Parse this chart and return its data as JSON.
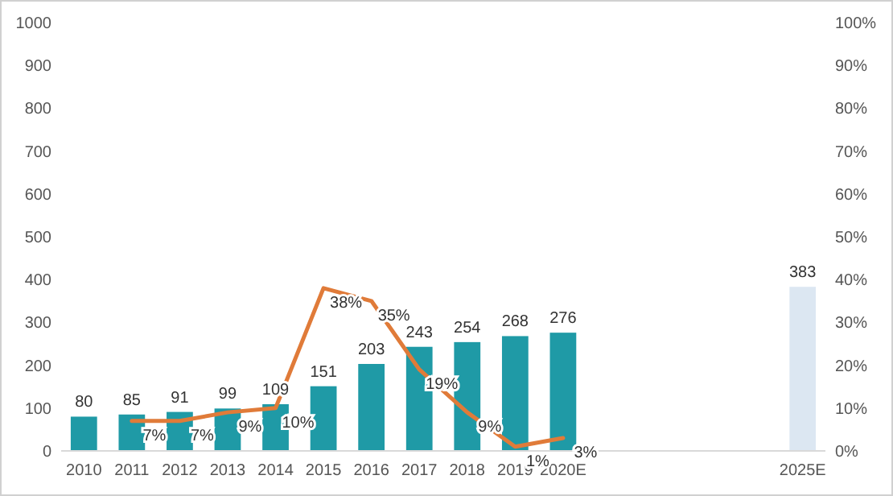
{
  "chart_data": {
    "type": "bar",
    "categories": [
      "2010",
      "2011",
      "2012",
      "2013",
      "2014",
      "2015",
      "2016",
      "2017",
      "2018",
      "2019",
      "2020E",
      null,
      null,
      null,
      null,
      "2025E"
    ],
    "series": [
      {
        "colors": [
          "#1f9aa6",
          "#1f9aa6",
          "#1f9aa6",
          "#1f9aa6",
          "#1f9aa6",
          "#1f9aa6",
          "#1f9aa6",
          "#1f9aa6",
          "#1f9aa6",
          "#1f9aa6",
          "#1f9aa6",
          null,
          null,
          null,
          null,
          "#dce7f2"
        ],
        "values": [
          80,
          85,
          91,
          99,
          109,
          151,
          203,
          243,
          254,
          268,
          276,
          null,
          null,
          null,
          null,
          383
        ],
        "value_labels": [
          "80",
          "85",
          "91",
          "99",
          "109",
          "151",
          "203",
          "243",
          "254",
          "268",
          "276",
          null,
          null,
          null,
          null,
          "383"
        ]
      },
      {
        "type": "line",
        "axis": "y2",
        "color": "#e07b39",
        "values": [
          null,
          7,
          7,
          9,
          10,
          38,
          35,
          19,
          9,
          1,
          3,
          null,
          null,
          null,
          null,
          null
        ],
        "value_labels": [
          null,
          "7%",
          "7%",
          "9%",
          "10%",
          "38%",
          "35%",
          "19%",
          "9%",
          "1%",
          "3%",
          null,
          null,
          null,
          null,
          null
        ]
      }
    ],
    "ylim": [
      0,
      1000
    ],
    "yticks": [
      0,
      100,
      200,
      300,
      400,
      500,
      600,
      700,
      800,
      900,
      1000
    ],
    "y2lim": [
      0,
      100
    ],
    "y2ticks": [
      {
        "value": 0,
        "label": "0%"
      },
      {
        "value": 10,
        "label": "10%"
      },
      {
        "value": 20,
        "label": "20%"
      },
      {
        "value": 30,
        "label": "30%"
      },
      {
        "value": 40,
        "label": "40%"
      },
      {
        "value": 50,
        "label": "50%"
      },
      {
        "value": 60,
        "label": "60%"
      },
      {
        "value": 70,
        "label": "70%"
      },
      {
        "value": 80,
        "label": "80%"
      },
      {
        "value": 90,
        "label": "90%"
      },
      {
        "value": 100,
        "label": "100%"
      }
    ],
    "grid": false,
    "marker": "none",
    "line_style": "solid"
  }
}
